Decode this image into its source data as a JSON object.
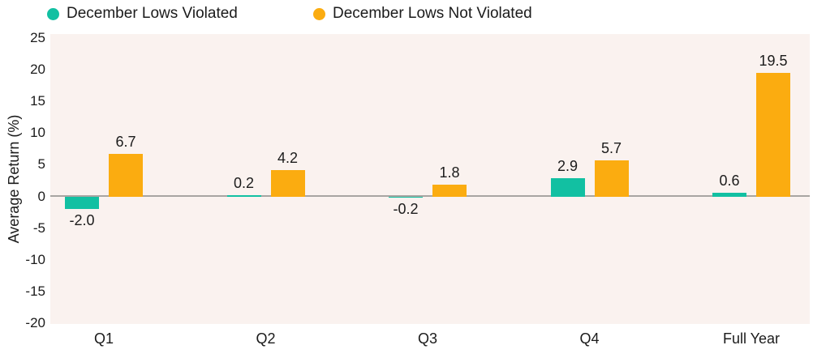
{
  "chart_data": {
    "type": "bar",
    "title": "",
    "categories": [
      "Q1",
      "Q2",
      "Q3",
      "Q4",
      "Full Year"
    ],
    "series": [
      {
        "name": "December Lows Violated",
        "color": "#12C0A2",
        "values": [
          -2.0,
          0.2,
          -0.2,
          2.9,
          0.6
        ]
      },
      {
        "name": "December Lows Not Violated",
        "color": "#FBAC10",
        "values": [
          6.7,
          4.2,
          1.8,
          5.7,
          19.5
        ]
      }
    ],
    "value_labels": [
      [
        "-2.0",
        "0.2",
        "-0.2",
        "2.9",
        "0.6"
      ],
      [
        "6.7",
        "4.2",
        "1.8",
        "5.7",
        "19.5"
      ]
    ],
    "xlabel": "",
    "ylabel": "Average Return (%)",
    "ylim": [
      -20,
      25
    ],
    "yticks": [
      25,
      20,
      15,
      10,
      5,
      0,
      -5,
      -10,
      -15,
      -20
    ],
    "grid": false,
    "legend_position": "top",
    "colors": {
      "page_background": "#FFFFFF",
      "plot_background": "#FAF2EF",
      "zero_line": "#A8A5A2",
      "text": "#1B1B1B"
    }
  }
}
